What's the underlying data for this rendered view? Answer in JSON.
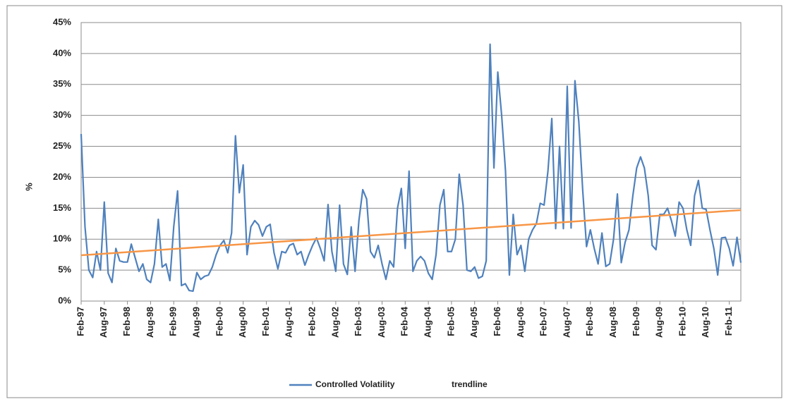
{
  "chart_data": {
    "type": "line",
    "y_label": "%",
    "categories": [
      "Feb-97",
      null,
      null,
      null,
      null,
      null,
      "Aug-97",
      null,
      null,
      null,
      null,
      null,
      "Feb-98",
      null,
      null,
      null,
      null,
      null,
      "Aug-98",
      null,
      null,
      null,
      null,
      null,
      "Feb-99",
      null,
      null,
      null,
      null,
      null,
      "Aug-99",
      null,
      null,
      null,
      null,
      null,
      "Feb-00",
      null,
      null,
      null,
      null,
      null,
      "Aug-00",
      null,
      null,
      null,
      null,
      null,
      "Feb-01",
      null,
      null,
      null,
      null,
      null,
      "Aug-01",
      null,
      null,
      null,
      null,
      null,
      "Feb-02",
      null,
      null,
      null,
      null,
      null,
      "Aug-02",
      null,
      null,
      null,
      null,
      null,
      "Feb-03",
      null,
      null,
      null,
      null,
      null,
      "Aug-03",
      null,
      null,
      null,
      null,
      null,
      "Feb-04",
      null,
      null,
      null,
      null,
      null,
      "Aug-04",
      null,
      null,
      null,
      null,
      null,
      "Feb-05",
      null,
      null,
      null,
      null,
      null,
      "Aug-05",
      null,
      null,
      null,
      null,
      null,
      "Feb-06",
      null,
      null,
      null,
      null,
      null,
      "Aug-06",
      null,
      null,
      null,
      null,
      null,
      "Feb-07",
      null,
      null,
      null,
      null,
      null,
      "Aug-07",
      null,
      null,
      null,
      null,
      null,
      "Feb-08",
      null,
      null,
      null,
      null,
      null,
      "Aug-08",
      null,
      null,
      null,
      null,
      null,
      "Feb-09",
      null,
      null,
      null,
      null,
      null,
      "Aug-09",
      null,
      null,
      null,
      null,
      null,
      "Feb-10",
      null,
      null,
      null,
      null,
      null,
      "Aug-10",
      null,
      null,
      null,
      null,
      null,
      "Feb-11",
      null,
      null,
      null
    ],
    "series": [
      {
        "name": "Controlled Volatility",
        "color": "#4f81bd",
        "values": [
          27,
          12,
          5,
          3.8,
          8,
          5,
          16,
          4.5,
          3,
          8.5,
          6.5,
          6.3,
          6.3,
          9.2,
          7,
          4.8,
          6,
          3.5,
          3,
          6,
          13.2,
          5.5,
          6,
          3.3,
          12,
          17.8,
          2.5,
          2.8,
          1.7,
          1.6,
          4.6,
          3.5,
          4,
          4.2,
          5.5,
          7.5,
          9,
          9.8,
          7.8,
          11,
          26.7,
          17.5,
          22,
          7.5,
          12,
          13,
          12.3,
          10.5,
          12,
          12.4,
          7.8,
          5.2,
          8,
          7.8,
          9,
          9.3,
          7.5,
          8,
          5.8,
          7.5,
          9,
          10.2,
          8.5,
          6.5,
          15.6,
          8,
          4.8,
          15.5,
          6,
          4.3,
          12,
          4.8,
          13,
          18,
          16.5,
          8,
          7,
          9,
          6,
          3.5,
          6.5,
          5.5,
          15,
          18.2,
          8.5,
          21,
          4.8,
          6.5,
          7.2,
          6.5,
          4.5,
          3.5,
          7.5,
          15.5,
          18,
          8,
          8,
          10,
          20.5,
          15.5,
          5,
          4.8,
          5.5,
          3.7,
          4,
          6.5,
          41.5,
          21.5,
          37,
          30,
          21,
          4.2,
          14,
          7.5,
          9,
          4.8,
          10,
          11.5,
          12.5,
          15.8,
          15.5,
          21,
          29.5,
          11.7,
          25,
          11.7,
          34.7,
          11.8,
          35.6,
          29,
          18,
          8.8,
          11.5,
          8.5,
          6,
          11,
          5.6,
          6,
          10,
          17.3,
          6.2,
          9.5,
          11.5,
          17,
          21.5,
          23.3,
          21.5,
          17,
          9,
          8.3,
          14,
          14,
          15,
          13,
          10.5,
          16,
          15,
          11.5,
          9,
          17,
          19.5,
          15,
          14.8,
          11.5,
          8.5,
          4.2,
          10.2,
          10.3,
          8.5,
          5.7,
          10.3,
          6.2
        ]
      }
    ],
    "trendline": {
      "name": "trendline",
      "color": "#f79646",
      "values": [
        7.4,
        14.7
      ]
    },
    "ylim": [
      0,
      45
    ],
    "yticks": [
      {
        "value": 0,
        "label": "0%"
      },
      {
        "value": 5,
        "label": "5%"
      },
      {
        "value": 10,
        "label": "10%"
      },
      {
        "value": 15,
        "label": "15%"
      },
      {
        "value": 20,
        "label": "20%"
      },
      {
        "value": 25,
        "label": "25%"
      },
      {
        "value": 30,
        "label": "30%"
      },
      {
        "value": 35,
        "label": "35%"
      },
      {
        "value": 40,
        "label": "40%"
      },
      {
        "value": 45,
        "label": "45%"
      }
    ],
    "grid": true
  }
}
